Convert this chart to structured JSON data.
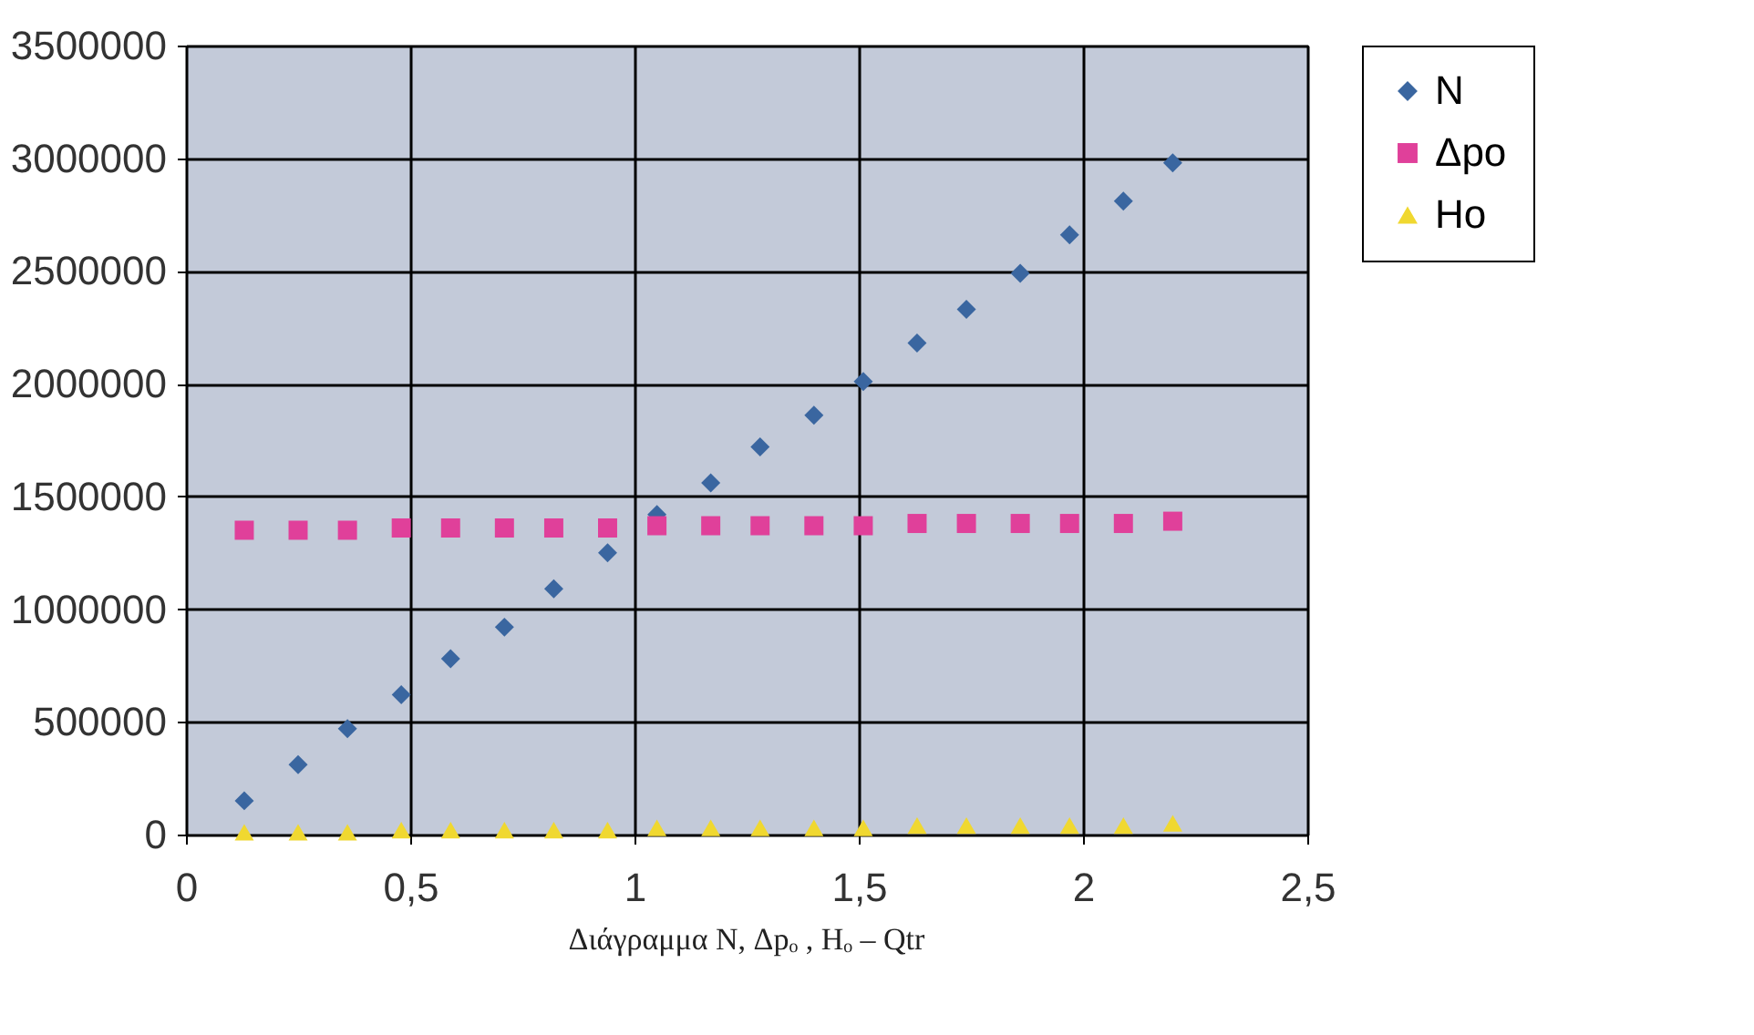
{
  "chart_data": {
    "type": "scatter",
    "x": [
      0.13,
      0.25,
      0.36,
      0.48,
      0.59,
      0.71,
      0.82,
      0.94,
      1.05,
      1.17,
      1.28,
      1.4,
      1.51,
      1.63,
      1.74,
      1.86,
      1.97,
      2.09,
      2.2
    ],
    "series": [
      {
        "name": "N",
        "color": "#3a66a0",
        "marker": "diamond",
        "values": [
          150000,
          310000,
          470000,
          620000,
          780000,
          920000,
          1090000,
          1250000,
          1420000,
          1560000,
          1720000,
          1860000,
          2010000,
          2180000,
          2330000,
          2490000,
          2660000,
          2810000,
          2980000
        ]
      },
      {
        "name": "Δpo",
        "color": "#e0409a",
        "marker": "square",
        "values": [
          1350000,
          1350000,
          1350000,
          1360000,
          1360000,
          1360000,
          1360000,
          1360000,
          1370000,
          1370000,
          1370000,
          1370000,
          1370000,
          1380000,
          1380000,
          1380000,
          1380000,
          1380000,
          1390000
        ]
      },
      {
        "name": "Ho",
        "color": "#f0d830",
        "marker": "triangle",
        "values": [
          10000,
          10000,
          10000,
          20000,
          20000,
          20000,
          20000,
          20000,
          30000,
          30000,
          30000,
          30000,
          30000,
          40000,
          40000,
          40000,
          40000,
          40000,
          50000
        ]
      }
    ],
    "xlim": [
      0,
      2.5
    ],
    "xticks": [
      0,
      {
        "value": 0.5,
        "label": "0,5"
      },
      1,
      {
        "value": 1.5,
        "label": "1,5"
      },
      2,
      {
        "value": 2.5,
        "label": "2,5"
      }
    ],
    "ylim": [
      0,
      3500000
    ],
    "yticks": [
      0,
      500000,
      1000000,
      1500000,
      2000000,
      2500000,
      3000000,
      3500000
    ],
    "grid": true,
    "legend": "right",
    "annotations": [
      "Διάγραμμα N, Δpₒ , Hₒ – Qtr"
    ]
  }
}
